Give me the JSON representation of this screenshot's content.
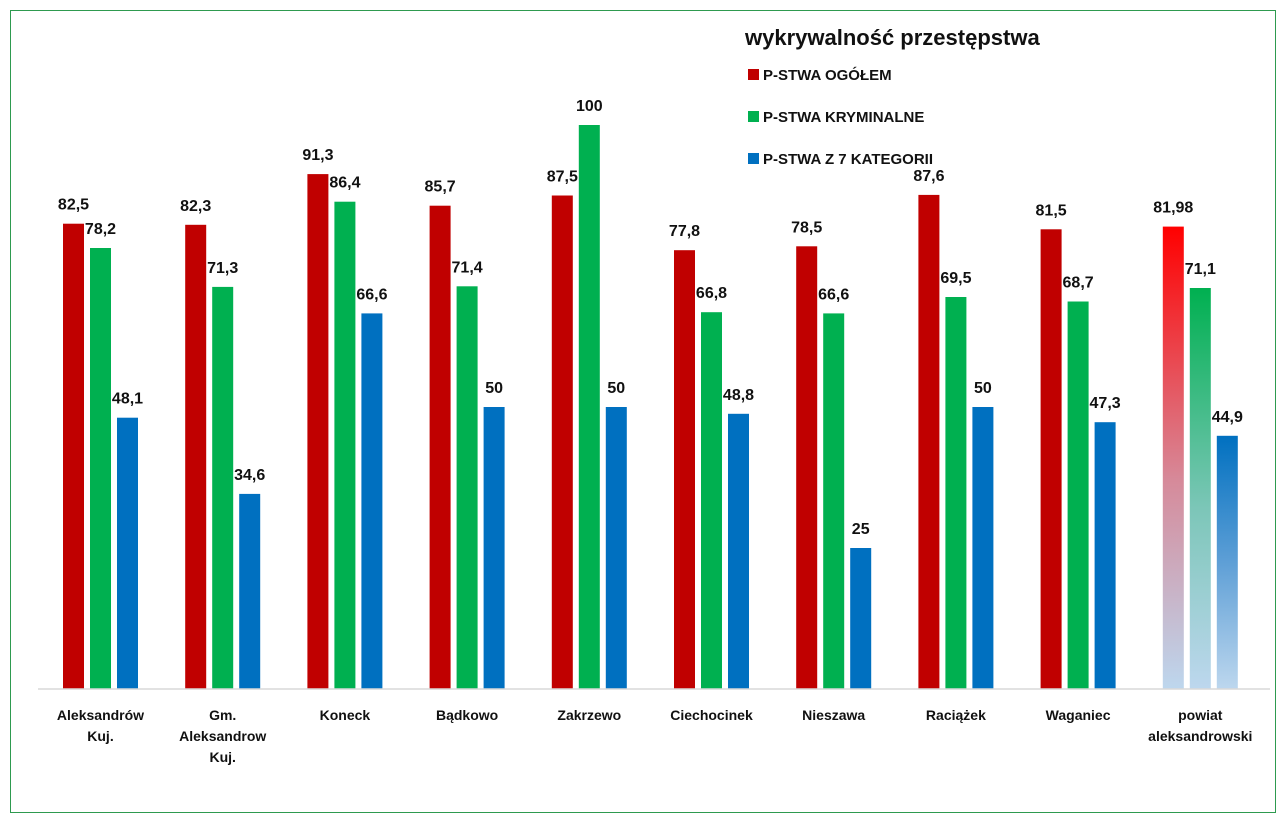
{
  "chart_data": {
    "type": "bar",
    "title": "wykrywalność przestępstwa",
    "ylim": [
      0,
      100
    ],
    "grid": false,
    "legend_position": "top-right",
    "categories": [
      [
        "Aleksandrów",
        "Kuj."
      ],
      [
        "Gm.",
        "Aleksandrow",
        "Kuj."
      ],
      [
        "Koneck"
      ],
      [
        "Bądkowo"
      ],
      [
        "Zakrzewo"
      ],
      [
        "Ciechocinek"
      ],
      [
        "Nieszawa"
      ],
      [
        "Raciążek"
      ],
      [
        "Waganiec"
      ],
      [
        "powiat",
        "aleksandrowski"
      ]
    ],
    "series": [
      {
        "name": "P-STWA OGÓŁEM",
        "color": "#c00000",
        "values": [
          82.5,
          82.3,
          91.3,
          85.7,
          87.5,
          77.8,
          78.5,
          87.6,
          81.5,
          81.98
        ],
        "labels": [
          "82,5",
          "82,3",
          "91,3",
          "85,7",
          "87,5",
          "77,8",
          "78,5",
          "87,6",
          "81,5",
          "81,98"
        ]
      },
      {
        "name": "P-STWA KRYMINALNE",
        "color": "#00b050",
        "values": [
          78.2,
          71.3,
          86.4,
          71.4,
          100,
          66.8,
          66.6,
          69.5,
          68.7,
          71.1
        ],
        "labels": [
          "78,2",
          "71,3",
          "86,4",
          "71,4",
          "100",
          "66,8",
          "66,6",
          "69,5",
          "68,7",
          "71,1"
        ]
      },
      {
        "name": "P-STWA Z 7 KATEGORII",
        "color": "#0070c0",
        "values": [
          48.1,
          34.6,
          66.6,
          50,
          50,
          48.8,
          25,
          50,
          47.3,
          44.9
        ],
        "labels": [
          "48,1",
          "34,6",
          "66,6",
          "50",
          "50",
          "48,8",
          "25",
          "50",
          "47,3",
          "44,9"
        ]
      }
    ],
    "last_group_gradient": true,
    "gradient_colors": {
      "red_top": "#ff0000",
      "green_top": "#00b050",
      "blue_top": "#0070c0",
      "fade": "#bdd7ee"
    },
    "axis_color": "#d9d9d9"
  }
}
